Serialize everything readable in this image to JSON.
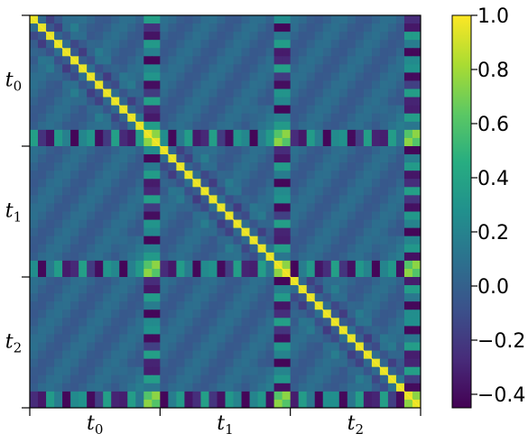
{
  "chart_data": {
    "type": "heatmap",
    "title": "",
    "xlabel": "",
    "ylabel": "",
    "x_tick_labels": [
      {
        "base": "t",
        "sub": "0"
      },
      {
        "base": "t",
        "sub": "1"
      },
      {
        "base": "t",
        "sub": "2"
      }
    ],
    "y_tick_labels": [
      {
        "base": "t",
        "sub": "0"
      },
      {
        "base": "t",
        "sub": "1"
      },
      {
        "base": "t",
        "sub": "2"
      }
    ],
    "blocks": 3,
    "cells_per_block": 16,
    "colormap": "viridis",
    "value_range": [
      -0.45,
      1.0
    ],
    "diagonal_value": 1.0,
    "colorbar": {
      "ticks": [
        1.0,
        0.8,
        0.6,
        0.4,
        0.2,
        0.0,
        -0.2,
        -0.4
      ],
      "tick_labels": [
        "1.0",
        "0.8",
        "0.6",
        "0.4",
        "0.2",
        "0.0",
        "−0.2",
        "−0.4"
      ]
    }
  }
}
